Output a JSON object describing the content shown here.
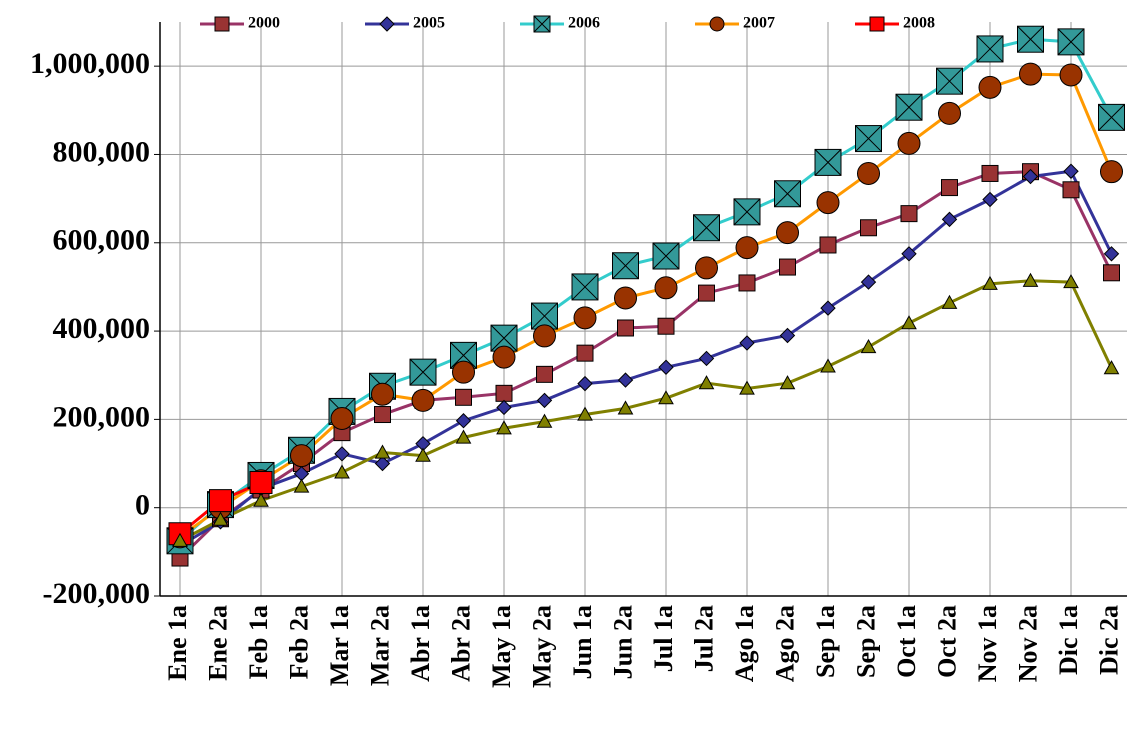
{
  "chart_data": {
    "type": "line",
    "categories": [
      "Ene 1a",
      "Ene 2a",
      "Feb 1a",
      "Feb 2a",
      "Mar 1a",
      "Mar 2a",
      "Abr 1a",
      "Abr 2a",
      "May 1a",
      "May 2a",
      "Jun 1a",
      "Jun 2a",
      "Jul 1a",
      "Jul 2a",
      "Ago 1a",
      "Ago 2a",
      "Sep 1a",
      "Sep 2a",
      "Oct 1a",
      "Oct 2a",
      "Nov 1a",
      "Nov 2a",
      "Dic 1a",
      "Dic 2a"
    ],
    "series": [
      {
        "name": "2000",
        "color": "#993366",
        "marker": "square",
        "marker_color": "#993333",
        "values": [
          -114000,
          -25000,
          40000,
          100000,
          170000,
          211000,
          243000,
          250000,
          259000,
          302000,
          350000,
          407000,
          411000,
          486000,
          509000,
          545000,
          595000,
          634000,
          666000,
          725000,
          757000,
          761000,
          720000,
          532000
        ]
      },
      {
        "name": "2005",
        "color": "#333399",
        "marker": "diamond",
        "marker_color": "#333399",
        "values": [
          -86000,
          -32000,
          43000,
          77000,
          122000,
          100000,
          145000,
          197000,
          227000,
          243000,
          281000,
          289000,
          318000,
          338000,
          373000,
          390000,
          452000,
          511000,
          575000,
          653000,
          698000,
          750000,
          762000,
          575000
        ]
      },
      {
        "name": "2006",
        "color": "#33cccc",
        "marker": "xsquare",
        "marker_color": "#339999",
        "values": [
          -75000,
          7000,
          73000,
          130000,
          218000,
          275000,
          307000,
          345000,
          384000,
          434000,
          500000,
          548000,
          570000,
          634000,
          670000,
          711000,
          782000,
          836000,
          907000,
          966000,
          1039000,
          1061000,
          1055000,
          884000
        ]
      },
      {
        "name": "2007",
        "color": "#ff9900",
        "marker": "circle",
        "marker_color": "#993300",
        "values": [
          -66000,
          0,
          61000,
          118000,
          202000,
          257000,
          243000,
          307000,
          341000,
          389000,
          430000,
          475000,
          498000,
          543000,
          589000,
          623000,
          691000,
          757000,
          825000,
          893000,
          952000,
          982000,
          980000,
          761000
        ]
      },
      {
        "name": "2008",
        "color": "#ff0000",
        "marker": "square",
        "marker_color": "#ff0000",
        "values": [
          -59000,
          16000,
          57000,
          null,
          null,
          null,
          null,
          null,
          null,
          null,
          null,
          null,
          null,
          null,
          null,
          null,
          null,
          null,
          null,
          null,
          null,
          null,
          null,
          null
        ]
      },
      {
        "color": "#808000",
        "marker": "triangle",
        "marker_color": "#808000",
        "values": [
          -75000,
          -27000,
          16000,
          48000,
          80000,
          125000,
          118000,
          159000,
          180000,
          195000,
          211000,
          225000,
          248000,
          282000,
          270000,
          282000,
          320000,
          364000,
          418000,
          464000,
          507000,
          514000,
          511000,
          316000
        ]
      }
    ],
    "ylim": [
      -200000,
      1100000
    ],
    "yticks": [
      {
        "value": -200000,
        "label": "-200,000"
      },
      0,
      {
        "value": 200000,
        "label": "200,000"
      },
      {
        "value": 400000,
        "label": "400,000"
      },
      {
        "value": 600000,
        "label": "600,000"
      },
      {
        "value": 800000,
        "label": "800,000"
      },
      {
        "value": 1000000,
        "label": "1,000,000"
      }
    ],
    "grid": true
  }
}
